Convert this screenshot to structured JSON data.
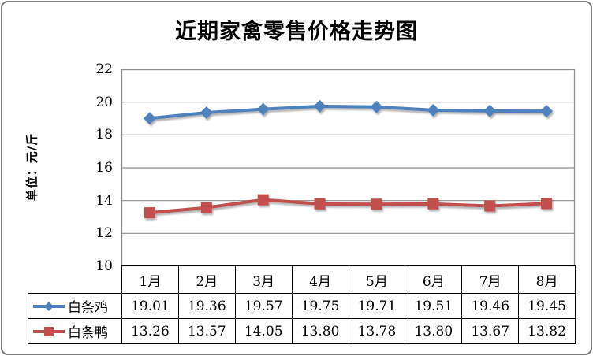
{
  "chart_data": {
    "type": "line",
    "title": "近期家禽零售价格走势图",
    "ylabel": "单位：元/斤",
    "xlabel": "",
    "ylim": [
      10,
      22
    ],
    "yticks": [
      22,
      20,
      18,
      16,
      14,
      12,
      10
    ],
    "grid": true,
    "legend_position": "data-table-left",
    "categories": [
      "1月",
      "2月",
      "3月",
      "4月",
      "5月",
      "6月",
      "7月",
      "8月"
    ],
    "series": [
      {
        "name": "白条鸡",
        "marker": "diamond",
        "color": "#4F81BD",
        "values": [
          19.01,
          19.36,
          19.57,
          19.75,
          19.71,
          19.51,
          19.46,
          19.45
        ]
      },
      {
        "name": "白条鸭",
        "marker": "square",
        "color": "#C0504D",
        "values": [
          13.26,
          13.57,
          14.05,
          13.8,
          13.78,
          13.8,
          13.67,
          13.82
        ]
      }
    ]
  },
  "colors": {
    "grid_line": "#8e8e8e",
    "plot_border": "#8e8e8e",
    "table_border": "#000000",
    "outer_frame": "#7f7f7f",
    "background": "#ffffff",
    "text": "#000000"
  }
}
